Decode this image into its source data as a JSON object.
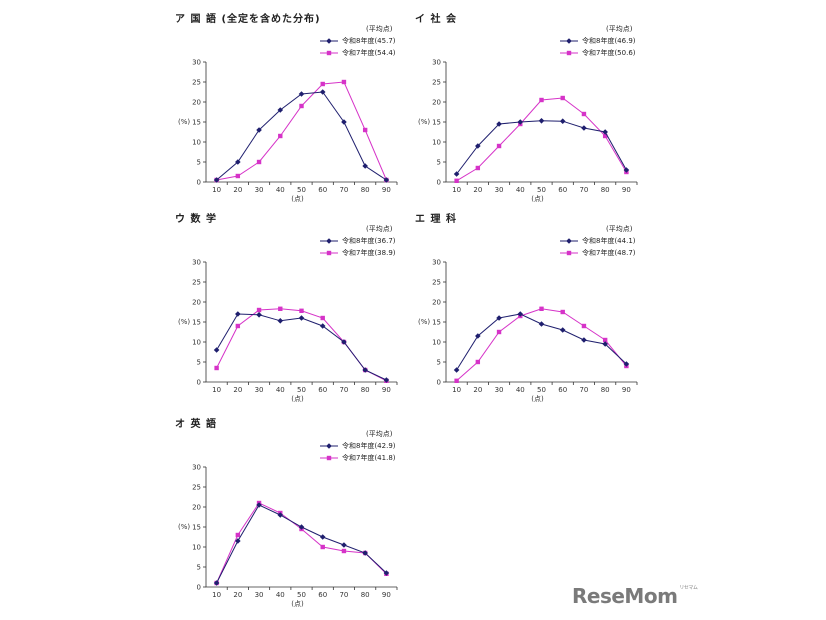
{
  "watermark": {
    "text": "ReseMom",
    "sup": "リセマム"
  },
  "colors": {
    "r8": "#1f1f6e",
    "r7": "#d633c8"
  },
  "chart_data": [
    {
      "type": "line",
      "title": "ア 国 語 (全定を含めた分布)",
      "avg_label": "(平均点)",
      "xlabel": "(点)",
      "ylabel": "(%)",
      "x": [
        10,
        20,
        30,
        40,
        50,
        60,
        70,
        80,
        90
      ],
      "ylim": [
        0,
        30
      ],
      "yticks": [
        0,
        5,
        10,
        15,
        20,
        25,
        30
      ],
      "legend_position": "top-right",
      "series": [
        {
          "name": "令和8年度(45.7)",
          "marker": "diamond",
          "values": [
            0.5,
            5,
            13,
            18,
            22,
            22.5,
            15,
            4,
            0.5
          ]
        },
        {
          "name": "令和7年度(54.4)",
          "marker": "square",
          "values": [
            0.5,
            1.5,
            5,
            11.5,
            19,
            24.5,
            25,
            13,
            0.5
          ]
        }
      ]
    },
    {
      "type": "line",
      "title": "イ 社 会",
      "avg_label": "(平均点)",
      "xlabel": "(点)",
      "ylabel": "(%)",
      "x": [
        10,
        20,
        30,
        40,
        50,
        60,
        70,
        80,
        90
      ],
      "ylim": [
        0,
        30
      ],
      "yticks": [
        0,
        5,
        10,
        15,
        20,
        25,
        30
      ],
      "legend_position": "top-right",
      "series": [
        {
          "name": "令和8年度(46.9)",
          "marker": "diamond",
          "values": [
            2,
            9,
            14.5,
            15,
            15.3,
            15.2,
            13.5,
            12.5,
            3
          ]
        },
        {
          "name": "令和7年度(50.6)",
          "marker": "square",
          "values": [
            0.3,
            3.5,
            9,
            14.5,
            20.5,
            21,
            17,
            11.5,
            2.5
          ]
        }
      ]
    },
    {
      "type": "line",
      "title": "ウ 数 学",
      "avg_label": "(平均点)",
      "xlabel": "(点)",
      "ylabel": "(%)",
      "x": [
        10,
        20,
        30,
        40,
        50,
        60,
        70,
        80,
        90
      ],
      "ylim": [
        0,
        30
      ],
      "yticks": [
        0,
        5,
        10,
        15,
        20,
        25,
        30
      ],
      "legend_position": "top-right",
      "series": [
        {
          "name": "令和8年度(36.7)",
          "marker": "diamond",
          "values": [
            8,
            17,
            16.8,
            15.3,
            16,
            14,
            10,
            3,
            0.5
          ]
        },
        {
          "name": "令和7年度(38.9)",
          "marker": "square",
          "values": [
            3.5,
            14,
            18,
            18.3,
            17.8,
            16,
            10,
            3,
            0.3
          ]
        }
      ]
    },
    {
      "type": "line",
      "title": "エ 理 科",
      "avg_label": "(平均点)",
      "xlabel": "(点)",
      "ylabel": "(%)",
      "x": [
        10,
        20,
        30,
        40,
        50,
        60,
        70,
        80,
        90
      ],
      "ylim": [
        0,
        30
      ],
      "yticks": [
        0,
        5,
        10,
        15,
        20,
        25,
        30
      ],
      "legend_position": "top-right",
      "series": [
        {
          "name": "令和8年度(44.1)",
          "marker": "diamond",
          "values": [
            3,
            11.5,
            16,
            17,
            14.5,
            13,
            10.5,
            9.5,
            4.5
          ]
        },
        {
          "name": "令和7年度(48.7)",
          "marker": "square",
          "values": [
            0.3,
            5,
            12.5,
            16.5,
            18.3,
            17.5,
            14,
            10.5,
            4
          ]
        }
      ]
    },
    {
      "type": "line",
      "title": "オ 英 語",
      "avg_label": "(平均点)",
      "xlabel": "(点)",
      "ylabel": "(%)",
      "x": [
        10,
        20,
        30,
        40,
        50,
        60,
        70,
        80,
        90
      ],
      "ylim": [
        0,
        30
      ],
      "yticks": [
        0,
        5,
        10,
        15,
        20,
        25,
        30
      ],
      "legend_position": "top-right",
      "series": [
        {
          "name": "令和8年度(42.9)",
          "marker": "diamond",
          "values": [
            1,
            11.5,
            20.5,
            18,
            15,
            12.5,
            10.5,
            8.5,
            3.5
          ]
        },
        {
          "name": "令和7年度(41.8)",
          "marker": "square",
          "values": [
            1,
            13,
            21,
            18.5,
            14.5,
            10,
            9,
            8.5,
            3.3
          ]
        }
      ]
    }
  ]
}
